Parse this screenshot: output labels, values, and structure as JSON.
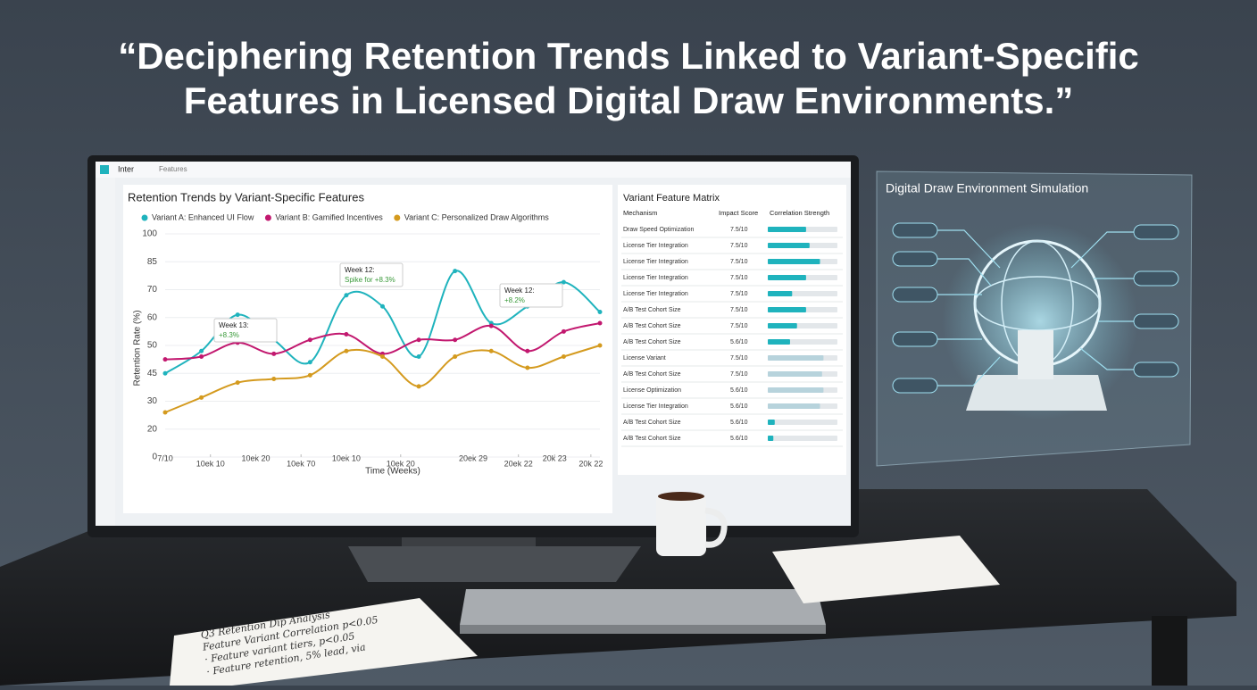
{
  "headline": [
    "“Deciphering Retention Trends Linked to Variant-Specific",
    "Features in Licensed Digital Draw Environments.”"
  ],
  "app_bar": {
    "brand": "Inter",
    "tab": "Features"
  },
  "chart_data": {
    "type": "line",
    "title": "Retention Trends by Variant-Specific Features",
    "y_label": "Retention Rate (%)",
    "x_label": "Time (Weeks)",
    "x": [
      0,
      2,
      4,
      6,
      8,
      10,
      12,
      14,
      16,
      18,
      20,
      22,
      24
    ],
    "xlim": [
      0,
      24
    ],
    "xticks": [
      {
        "value": 0,
        "label": "7/10"
      },
      {
        "value": 2.5,
        "label": "10ek 10"
      },
      {
        "value": 5,
        "label": "10ek 20"
      },
      {
        "value": 7.5,
        "label": "10ek 70"
      },
      {
        "value": 10,
        "label": "10ek 10"
      },
      {
        "value": 13,
        "label": "10ek 20"
      },
      {
        "value": 17,
        "label": "20ek 29"
      },
      {
        "value": 19.5,
        "label": "20ek 22"
      },
      {
        "value": 21.5,
        "label": "20k 23"
      },
      {
        "value": 23.5,
        "label": "20k 22"
      }
    ],
    "ylim": [
      0,
      100
    ],
    "yticks": [
      0,
      20,
      30,
      45,
      50,
      60,
      70,
      85,
      100
    ],
    "grid": true,
    "series": [
      {
        "name": "Variant A: Enhanced UI Flow",
        "color": "#1fb3bd",
        "values": [
          45,
          49,
          61,
          52,
          47,
          68,
          64,
          48,
          80,
          58,
          64,
          74,
          62
        ]
      },
      {
        "name": "Variant B: Gamified Incentives",
        "color": "#c2186f",
        "values": [
          47.5,
          48,
          51,
          48.5,
          52,
          54,
          48.5,
          52,
          52,
          57,
          49,
          55,
          58
        ]
      },
      {
        "name": "Variant C: Personalized Draw Algorithms",
        "color": "#d49a1e",
        "values": [
          26,
          32,
          40,
          42,
          44,
          49,
          48,
          38,
          48,
          49,
          46,
          48,
          50
        ]
      }
    ],
    "annotations": [
      {
        "title": "Week 13:",
        "text": "+8.3%"
      },
      {
        "title": "Week 12:",
        "text": "Spike for +8.3%"
      },
      {
        "title": "Week 12:",
        "text": "+8.2%"
      }
    ]
  },
  "matrix": {
    "title": "Variant Feature Matrix",
    "headers": [
      "Mechanism",
      "Impact Score",
      "Correlation Strength"
    ],
    "rows": [
      {
        "mechanism": "Draw Speed Optimization",
        "impact": "7.5/10",
        "strength": 0.55,
        "color": "#1fb3bd"
      },
      {
        "mechanism": "License Tier Integration",
        "impact": "7.5/10",
        "strength": 0.6,
        "color": "#1fb3bd"
      },
      {
        "mechanism": "License Tier Integration",
        "impact": "7.5/10",
        "strength": 0.75,
        "color": "#1fb3bd"
      },
      {
        "mechanism": "License Tier Integration",
        "impact": "7.5/10",
        "strength": 0.55,
        "color": "#1fb3bd"
      },
      {
        "mechanism": "License Tier Integration",
        "impact": "7.5/10",
        "strength": 0.35,
        "color": "#1fb3bd"
      },
      {
        "mechanism": "A/B Test Cohort Size",
        "impact": "7.5/10",
        "strength": 0.55,
        "color": "#1fb3bd"
      },
      {
        "mechanism": "A/B Test Cohort Size",
        "impact": "7.5/10",
        "strength": 0.42,
        "color": "#1fb3bd"
      },
      {
        "mechanism": "A/B Test Cohort Size",
        "impact": "5.6/10",
        "strength": 0.32,
        "color": "#1fb3bd"
      },
      {
        "mechanism": "License Variant",
        "impact": "7.5/10",
        "strength": 0.8,
        "color": "#b7d3dc"
      },
      {
        "mechanism": "A/B Test Cohort Size",
        "impact": "7.5/10",
        "strength": 0.78,
        "color": "#b7d3dc"
      },
      {
        "mechanism": "License Optimization",
        "impact": "5.6/10",
        "strength": 0.8,
        "color": "#b7d3dc"
      },
      {
        "mechanism": "License Tier Integration",
        "impact": "5.6/10",
        "strength": 0.75,
        "color": "#b7d3dc"
      },
      {
        "mechanism": "A/B Test Cohort Size",
        "impact": "5.6/10",
        "strength": 0.1,
        "color": "#1fb3bd"
      },
      {
        "mechanism": "A/B Test Cohort Size",
        "impact": "5.6/10",
        "strength": 0.08,
        "color": "#1fb3bd"
      }
    ]
  },
  "simulation": {
    "title": "Digital Draw Environment Simulation"
  },
  "notebook": {
    "lines": [
      "Q3 Retention Dip Analysis",
      "Feature Variant Correlation p<0.05",
      "· Feature variant tiers, p<0.05",
      "· Feature retention, 5% lead, via"
    ]
  }
}
